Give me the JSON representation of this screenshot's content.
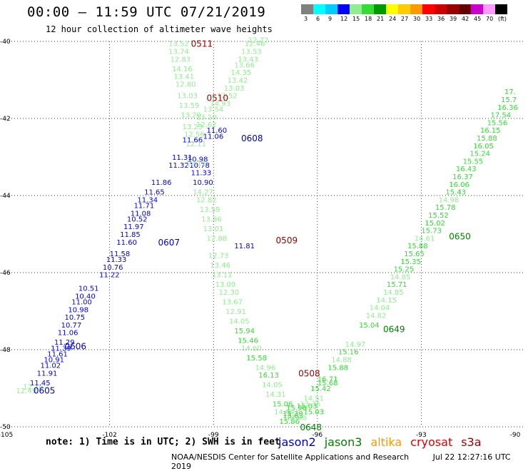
{
  "title": "00:00 – 11:59 UTC 07/21/2019",
  "subtitle": "12 hour collection of altimeter wave heights",
  "note": "note: 1) Time is in UTC; 2) SWH is in feet",
  "footer": {
    "org": "NOAA/NESDIS Center for Satellite Applications and Research",
    "timestamp": "Jul 22 12:27:16 UTC 2019"
  },
  "satellites": [
    {
      "name": "jason2",
      "color": "#0000cc"
    },
    {
      "name": "jason3",
      "color": "#008000"
    },
    {
      "name": "altika",
      "color": "#ff9900"
    },
    {
      "name": "cryosat",
      "color": "#e00000"
    },
    {
      "name": "s3a",
      "color": "#990000"
    }
  ],
  "colorbar": {
    "colors": [
      "#808080",
      "#00ffff",
      "#00ccff",
      "#0000ff",
      "#90ee90",
      "#33dd33",
      "#009900",
      "#ffff00",
      "#ffcc00",
      "#ff9900",
      "#ff0000",
      "#cc0000",
      "#990000",
      "#660000",
      "#cc00cc",
      "#ff99ff",
      "#000000"
    ],
    "labels": [
      "3",
      "6",
      "9",
      "12",
      "15",
      "18",
      "21",
      "24",
      "27",
      "30",
      "33",
      "36",
      "39",
      "42",
      "45",
      "70",
      "(ft)"
    ]
  },
  "chart_data": {
    "type": "scatter",
    "xlim": [
      -105,
      -90
    ],
    "ylim": [
      -50,
      -40
    ],
    "x_ticks": [
      "-105",
      "-102",
      "-99",
      "-96",
      "-93",
      "-90"
    ],
    "y_ticks": [
      "-40",
      "-42",
      "-44",
      "-46",
      "-48",
      "-50"
    ],
    "grid": true,
    "tracks": [
      {
        "sat": "jason2",
        "label": "0605",
        "label_x": -104.2,
        "label_y": -49.05,
        "points": [
          {
            "lon": -104.7,
            "lat": -49.06,
            "v": "12.49"
          },
          {
            "lon": -104.5,
            "lat": -48.95,
            "v": "12.16"
          },
          {
            "lon": -104.3,
            "lat": -48.85,
            "v": "11.45"
          },
          {
            "lon": -104.1,
            "lat": -48.6,
            "v": "11.91"
          },
          {
            "lon": -104.0,
            "lat": -48.4,
            "v": "11.02"
          },
          {
            "lon": -103.9,
            "lat": -48.25,
            "v": "10.91"
          },
          {
            "lon": -103.8,
            "lat": -48.1,
            "v": "11.61"
          },
          {
            "lon": -103.7,
            "lat": -47.95,
            "v": "11.39"
          },
          {
            "lon": -103.6,
            "lat": -47.8,
            "v": "11.29"
          },
          {
            "lon": -103.5,
            "lat": -47.55,
            "v": "11.06"
          },
          {
            "lon": -103.4,
            "lat": -47.35,
            "v": "10.77"
          },
          {
            "lon": -103.3,
            "lat": -47.15,
            "v": "10.75"
          },
          {
            "lon": -103.2,
            "lat": -46.95,
            "v": "10.98"
          },
          {
            "lon": -103.1,
            "lat": -46.75,
            "v": "11.00"
          },
          {
            "lon": -103.0,
            "lat": -46.6,
            "v": "10.40"
          },
          {
            "lon": -102.9,
            "lat": -46.4,
            "v": "10.51"
          }
        ]
      },
      {
        "sat": "jason2",
        "label": "0606",
        "label_x": -103.3,
        "label_y": -47.9,
        "points": []
      },
      {
        "sat": "jason2",
        "label": "0607",
        "label_x": -100.6,
        "label_y": -45.2,
        "points": [
          {
            "lon": -102.3,
            "lat": -46.05,
            "v": "11.22"
          },
          {
            "lon": -102.2,
            "lat": -45.85,
            "v": "10.76"
          },
          {
            "lon": -102.1,
            "lat": -45.65,
            "v": "11.33"
          },
          {
            "lon": -102.0,
            "lat": -45.5,
            "v": "11.58"
          },
          {
            "lon": -101.8,
            "lat": -45.2,
            "v": "11.60"
          },
          {
            "lon": -101.7,
            "lat": -45.0,
            "v": "11.85"
          },
          {
            "lon": -101.6,
            "lat": -44.8,
            "v": "11.97"
          },
          {
            "lon": -101.5,
            "lat": -44.6,
            "v": "10.52"
          },
          {
            "lon": -101.4,
            "lat": -44.45,
            "v": "11.08"
          },
          {
            "lon": -101.3,
            "lat": -44.25,
            "v": "11.71"
          },
          {
            "lon": -101.2,
            "lat": -44.1,
            "v": "11.34"
          },
          {
            "lon": -101.0,
            "lat": -43.9,
            "v": "11.65"
          },
          {
            "lon": -100.8,
            "lat": -43.65,
            "v": "11.86"
          },
          {
            "lon": -100.3,
            "lat": -43.2,
            "v": "11.32"
          },
          {
            "lon": -100.2,
            "lat": -43.0,
            "v": "11.31"
          },
          {
            "lon": -99.9,
            "lat": -42.55,
            "v": "11.66"
          }
        ]
      },
      {
        "sat": "jason2",
        "label": "0608",
        "label_x": -98.2,
        "label_y": -42.5,
        "points": [
          {
            "lon": -99.6,
            "lat": -43.65,
            "v": "10.90"
          },
          {
            "lon": -99.65,
            "lat": -43.4,
            "v": "11.33"
          },
          {
            "lon": -99.7,
            "lat": -43.2,
            "v": "10.78"
          },
          {
            "lon": -99.75,
            "lat": -43.05,
            "v": "10.98"
          },
          {
            "lon": -99.3,
            "lat": -42.45,
            "v": "11.06"
          },
          {
            "lon": -99.2,
            "lat": -42.3,
            "v": "11.60"
          },
          {
            "lon": -98.4,
            "lat": -45.3,
            "v": "11.81"
          }
        ]
      },
      {
        "sat": "jason3",
        "label": "0648",
        "label_x": -96.5,
        "label_y": -50.0,
        "points": [
          {
            "lon": -97.1,
            "lat": -49.85,
            "v": "15.86"
          },
          {
            "lon": -97.0,
            "lat": -49.7,
            "v": "15.63"
          },
          {
            "lon": -96.9,
            "lat": -49.5,
            "v": "15.90"
          },
          {
            "lon": -96.6,
            "lat": -49.45,
            "v": "15.03"
          },
          {
            "lon": -96.4,
            "lat": -49.25,
            "v": "14.51"
          },
          {
            "lon": -96.2,
            "lat": -49.0,
            "v": "15.42"
          },
          {
            "lon": -96.0,
            "lat": -48.75,
            "v": "16.71"
          },
          {
            "lon": -95.7,
            "lat": -48.45,
            "v": "15.88"
          },
          {
            "lon": -95.6,
            "lat": -48.25,
            "v": "14.88"
          },
          {
            "lon": -95.4,
            "lat": -48.05,
            "v": "15.16"
          },
          {
            "lon": -95.2,
            "lat": -47.85,
            "v": "14.97"
          },
          {
            "lon": -94.8,
            "lat": -47.35,
            "v": "15.04"
          },
          {
            "lon": -94.6,
            "lat": -47.1,
            "v": "14.82"
          },
          {
            "lon": -94.5,
            "lat": -46.9,
            "v": "14.04"
          },
          {
            "lon": -94.3,
            "lat": -46.7,
            "v": "14.15"
          },
          {
            "lon": -94.1,
            "lat": -46.5,
            "v": "14.85"
          },
          {
            "lon": -94.0,
            "lat": -46.3,
            "v": "15.71"
          },
          {
            "lon": -93.9,
            "lat": -46.1,
            "v": "14.85"
          },
          {
            "lon": -93.8,
            "lat": -45.9,
            "v": "15.25"
          },
          {
            "lon": -93.6,
            "lat": -45.7,
            "v": "15.35"
          },
          {
            "lon": -93.5,
            "lat": -45.5,
            "v": "15.65"
          }
        ]
      },
      {
        "sat": "jason3",
        "label": "0649",
        "label_x": -94.1,
        "label_y": -47.45,
        "points": [
          {
            "lon": -93.4,
            "lat": -45.3,
            "v": "15.88"
          },
          {
            "lon": -93.2,
            "lat": -45.1,
            "v": "14.61"
          },
          {
            "lon": -93.0,
            "lat": -44.9,
            "v": "15.73"
          },
          {
            "lon": -92.9,
            "lat": -44.7,
            "v": "15.02"
          },
          {
            "lon": -92.8,
            "lat": -44.5,
            "v": "15.52"
          },
          {
            "lon": -92.6,
            "lat": -44.3,
            "v": "15.78"
          },
          {
            "lon": -92.5,
            "lat": -44.1,
            "v": "14.98"
          },
          {
            "lon": -92.3,
            "lat": -43.9,
            "v": "15.43"
          },
          {
            "lon": -92.2,
            "lat": -43.7,
            "v": "16.06"
          },
          {
            "lon": -92.1,
            "lat": -43.5,
            "v": "16.37"
          },
          {
            "lon": -92.0,
            "lat": -43.3,
            "v": "16.43"
          },
          {
            "lon": -91.8,
            "lat": -43.1,
            "v": "15.55"
          }
        ]
      },
      {
        "sat": "jason3",
        "label": "0650",
        "label_x": -92.2,
        "label_y": -45.05,
        "points": [
          {
            "lon": -91.6,
            "lat": -42.9,
            "v": "15.24"
          },
          {
            "lon": -91.5,
            "lat": -42.7,
            "v": "16.05"
          },
          {
            "lon": -91.4,
            "lat": -42.5,
            "v": "15.88"
          },
          {
            "lon": -91.3,
            "lat": -42.3,
            "v": "16.15"
          },
          {
            "lon": -91.1,
            "lat": -42.1,
            "v": "15.56"
          },
          {
            "lon": -91.0,
            "lat": -41.9,
            "v": "17.54"
          },
          {
            "lon": -90.8,
            "lat": -41.7,
            "v": "16.36"
          },
          {
            "lon": -90.7,
            "lat": -41.5,
            "v": "15.7"
          },
          {
            "lon": -90.6,
            "lat": -41.3,
            "v": "17."
          }
        ]
      },
      {
        "sat": "s3a",
        "label": "0511",
        "label_x": -99.65,
        "label_y": -40.05,
        "points": [
          {
            "lon": -100.3,
            "lat": -40.05,
            "v": "13.52"
          },
          {
            "lon": -100.3,
            "lat": -40.25,
            "v": "13.74"
          },
          {
            "lon": -100.25,
            "lat": -40.45,
            "v": "12.83"
          },
          {
            "lon": -100.2,
            "lat": -40.7,
            "v": "14.16"
          },
          {
            "lon": -100.15,
            "lat": -40.9,
            "v": "13.41"
          },
          {
            "lon": -100.1,
            "lat": -41.1,
            "v": "12.80"
          },
          {
            "lon": -100.05,
            "lat": -41.4,
            "v": "13.03"
          },
          {
            "lon": -100.0,
            "lat": -41.65,
            "v": "13.59"
          },
          {
            "lon": -99.95,
            "lat": -41.9,
            "v": "13.20"
          },
          {
            "lon": -99.9,
            "lat": -42.2,
            "v": "13.23"
          },
          {
            "lon": -99.85,
            "lat": -42.4,
            "v": "12.56"
          },
          {
            "lon": -99.8,
            "lat": -42.65,
            "v": "12.11"
          }
        ]
      },
      {
        "sat": "s3a",
        "label": "0510",
        "label_x": -99.2,
        "label_y": -41.45,
        "points": [
          {
            "lon": -99.5,
            "lat": -41.95,
            "v": "13.10"
          },
          {
            "lon": -99.3,
            "lat": -41.75,
            "v": "13.54"
          },
          {
            "lon": -99.1,
            "lat": -41.6,
            "v": "14.93"
          },
          {
            "lon": -98.9,
            "lat": -41.4,
            "v": "12.52"
          },
          {
            "lon": -98.7,
            "lat": -41.2,
            "v": "13.03"
          },
          {
            "lon": -98.6,
            "lat": -41.0,
            "v": "13.42"
          },
          {
            "lon": -98.5,
            "lat": -40.8,
            "v": "14.35"
          },
          {
            "lon": -98.4,
            "lat": -40.6,
            "v": "13.66"
          },
          {
            "lon": -98.3,
            "lat": -40.45,
            "v": "13.43"
          },
          {
            "lon": -98.2,
            "lat": -40.25,
            "v": "13.53"
          },
          {
            "lon": -98.1,
            "lat": -40.05,
            "v": "12.46"
          },
          {
            "lon": -98.0,
            "lat": -39.95,
            "v": "12.72"
          },
          {
            "lon": -99.5,
            "lat": -42.15,
            "v": "12.62"
          }
        ]
      },
      {
        "sat": "s3a",
        "label": "0509",
        "label_x": -97.2,
        "label_y": -45.15,
        "points": [
          {
            "lon": -99.8,
            "lat": -43.15,
            "v": "12.11"
          },
          {
            "lon": -99.6,
            "lat": -43.9,
            "v": "14.27"
          },
          {
            "lon": -99.5,
            "lat": -44.1,
            "v": "12.82"
          },
          {
            "lon": -99.4,
            "lat": -44.35,
            "v": "13.59"
          },
          {
            "lon": -99.35,
            "lat": -44.6,
            "v": "13.86"
          },
          {
            "lon": -99.3,
            "lat": -44.85,
            "v": "13.01"
          },
          {
            "lon": -99.2,
            "lat": -45.1,
            "v": "12.88"
          },
          {
            "lon": -99.15,
            "lat": -45.55,
            "v": "12.73"
          },
          {
            "lon": -99.1,
            "lat": -45.8,
            "v": "13.46"
          },
          {
            "lon": -99.05,
            "lat": -46.05,
            "v": "13.11"
          },
          {
            "lon": -98.95,
            "lat": -46.3,
            "v": "13.09"
          },
          {
            "lon": -98.85,
            "lat": -46.5,
            "v": "12.30"
          },
          {
            "lon": -98.75,
            "lat": -46.75,
            "v": "13.67"
          },
          {
            "lon": -98.65,
            "lat": -47.0,
            "v": "12.91"
          },
          {
            "lon": -98.55,
            "lat": -47.25,
            "v": "14.05"
          },
          {
            "lon": -98.4,
            "lat": -47.5,
            "v": "15.94"
          },
          {
            "lon": -98.3,
            "lat": -47.75,
            "v": "15.46"
          },
          {
            "lon": -98.2,
            "lat": -47.95,
            "v": "14.60"
          },
          {
            "lon": -98.05,
            "lat": -48.2,
            "v": "15.58"
          }
        ]
      },
      {
        "sat": "s3a",
        "label": "0508",
        "label_x": -96.55,
        "label_y": -48.6,
        "points": [
          {
            "lon": -97.8,
            "lat": -48.45,
            "v": "14.96"
          },
          {
            "lon": -97.7,
            "lat": -48.65,
            "v": "16.13"
          },
          {
            "lon": -97.6,
            "lat": -48.9,
            "v": "14.05"
          },
          {
            "lon": -97.5,
            "lat": -49.15,
            "v": "14.31"
          },
          {
            "lon": -97.3,
            "lat": -49.4,
            "v": "15.06"
          },
          {
            "lon": -97.25,
            "lat": -49.6,
            "v": "14.64"
          },
          {
            "lon": -97.0,
            "lat": -49.65,
            "v": "15.30"
          },
          {
            "lon": -96.9,
            "lat": -49.75,
            "v": "14.68"
          },
          {
            "lon": -96.5,
            "lat": -49.4,
            "v": "13.36"
          },
          {
            "lon": -96.4,
            "lat": -49.6,
            "v": "15.03"
          },
          {
            "lon": -96.0,
            "lat": -48.85,
            "v": "15.68"
          }
        ]
      }
    ]
  }
}
